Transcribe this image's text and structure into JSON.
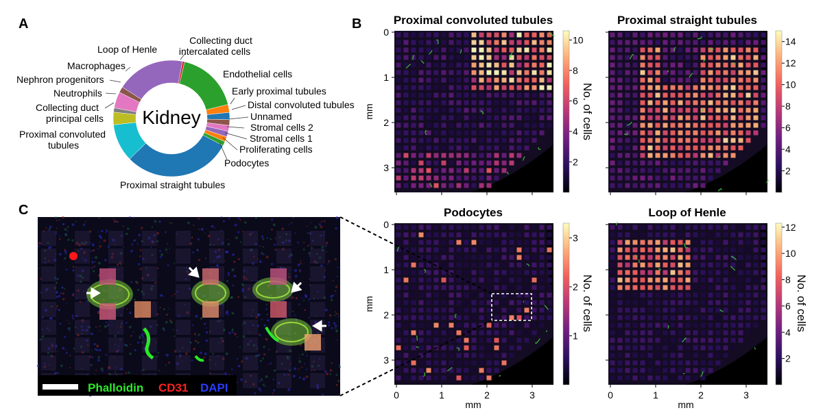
{
  "panel_letters": {
    "A": "A",
    "B": "B",
    "C": "C"
  },
  "donut": {
    "center_label": "Kidney",
    "slices": [
      {
        "label": "Collecting duct intercalated cells",
        "value": 0.6,
        "color": "#d62728"
      },
      {
        "label": "Endothelial cells",
        "value": 17.5,
        "color": "#2ca02c"
      },
      {
        "label": "Early proximal tubules",
        "value": 2.2,
        "color": "#ff7f0e"
      },
      {
        "label": "Distal convoluted tubules",
        "value": 2.0,
        "color": "#1f77b4"
      },
      {
        "label": "Unnamed",
        "value": 1.6,
        "color": "#8c564b"
      },
      {
        "label": "Stromal cells 2",
        "value": 1.6,
        "color": "#e377c2"
      },
      {
        "label": "Stromal cells 1",
        "value": 1.6,
        "color": "#9467bd"
      },
      {
        "label": "Proliferating cells",
        "value": 1.4,
        "color": "#ff7f0e"
      },
      {
        "label": "Podocytes",
        "value": 1.2,
        "color": "#2ca02c"
      },
      {
        "label": "Proximal straight tubules",
        "value": 30.0,
        "color": "#1f77b4"
      },
      {
        "label": "Proximal convoluted tubules",
        "value": 10.5,
        "color": "#17becf"
      },
      {
        "label": "Collecting duct principal cells",
        "value": 3.5,
        "color": "#bcbd22"
      },
      {
        "label": "Neutrophils",
        "value": 1.2,
        "color": "#7f7f7f"
      },
      {
        "label": "Nephron progenitors",
        "value": 4.5,
        "color": "#e377c2"
      },
      {
        "label": "Macrophages",
        "value": 1.6,
        "color": "#8c564b"
      },
      {
        "label": "Loop of Henle",
        "value": 19.0,
        "color": "#9467bd"
      }
    ],
    "labels": {
      "cdic_1": "Collecting duct",
      "cdic_2": "intercalated cells",
      "loop": "Loop of Henle",
      "endo": "Endothelial cells",
      "macro": "Macrophages",
      "early": "Early proximal tubules",
      "nephron": "Nephron progenitors",
      "distal": "Distal convoluted tubules",
      "neutro": "Neutrophils",
      "unnamed": "Unnamed",
      "cdpc_1": "Collecting duct",
      "cdpc_2": "principal cells",
      "stromal2": "Stromal cells 2",
      "stromal1": "Stromal cells 1",
      "pct_1": "Proximal convoluted",
      "pct_2": "tubules",
      "prolif": "Proliferating cells",
      "podo": "Podocytes",
      "pst": "Proximal straight tubules"
    }
  },
  "maps": [
    {
      "title": "Proximal convoluted tubules",
      "cbar_ticks": [
        "2",
        "4",
        "6",
        "8",
        "10"
      ],
      "cbar_max": 10.6,
      "cbar_label": "No. of cells"
    },
    {
      "title": "Proximal straight tubules",
      "cbar_ticks": [
        "2",
        "4",
        "6",
        "8",
        "10",
        "12",
        "14"
      ],
      "cbar_max": 15,
      "cbar_label": ""
    },
    {
      "title": "Podocytes",
      "cbar_ticks": [
        "1",
        "2",
        "3"
      ],
      "cbar_max": 3.3,
      "cbar_label": "No. of cells"
    },
    {
      "title": "Loop of Henle",
      "cbar_ticks": [
        "2",
        "4",
        "6",
        "8",
        "10",
        "12"
      ],
      "cbar_max": 12.3,
      "cbar_label": "No. of cells"
    }
  ],
  "axes": {
    "x_ticks": [
      "0",
      "1",
      "2",
      "3"
    ],
    "y_ticks": [
      "0",
      "1",
      "2",
      "3"
    ],
    "x_label": "mm",
    "y_label": "mm"
  },
  "micrograph": {
    "legend_phalloidin": "Phalloidin",
    "legend_cd31": "CD31",
    "legend_dapi": "DAPI",
    "color_phalloidin": "#2ee82e",
    "color_cd31": "#ff2020",
    "color_dapi": "#2a3cff"
  },
  "colormap": [
    "#000004",
    "#2c115f",
    "#721f81",
    "#b73779",
    "#f1605d",
    "#feb078",
    "#fcfdbf"
  ]
}
